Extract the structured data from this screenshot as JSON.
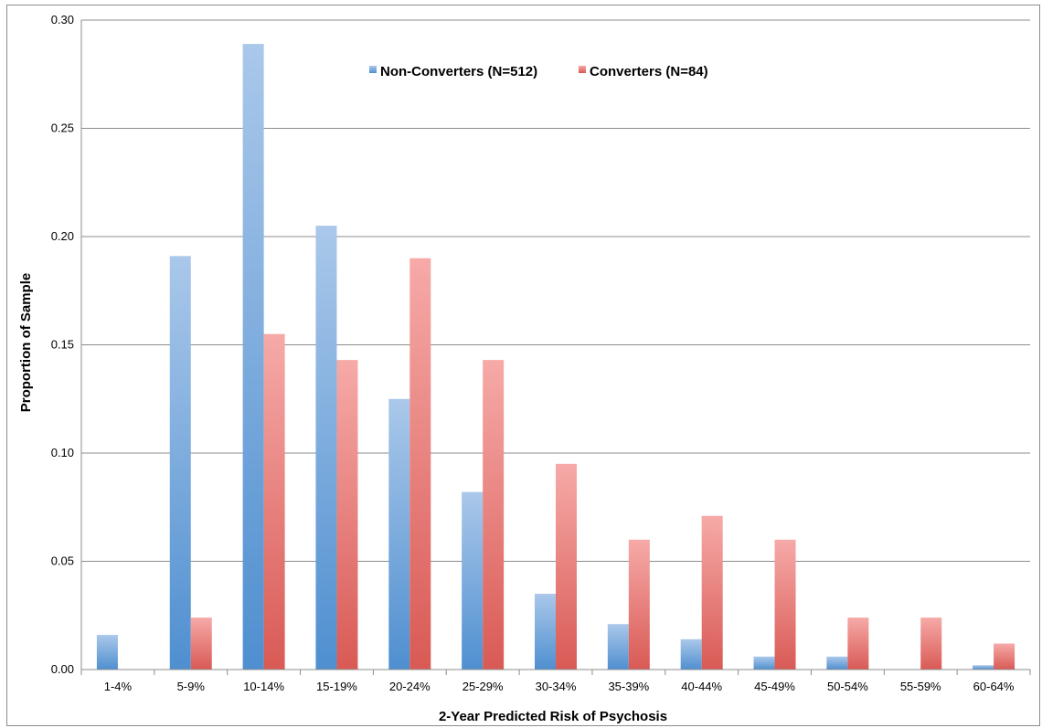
{
  "chart_data": {
    "type": "bar",
    "title": "",
    "xlabel": "2-Year Predicted Risk of Psychosis",
    "ylabel": "Proportion of Sample",
    "ylim": [
      0,
      0.3
    ],
    "yticks": [
      "0.00",
      "0.05",
      "0.10",
      "0.15",
      "0.20",
      "0.25",
      "0.30"
    ],
    "grid": true,
    "legend_position": "top-center",
    "categories": [
      "1-4%",
      "5-9%",
      "10-14%",
      "15-19%",
      "20-24%",
      "25-29%",
      "30-34%",
      "35-39%",
      "40-44%",
      "45-49%",
      "50-54%",
      "55-59%",
      "60-64%"
    ],
    "series": [
      {
        "name": "Non-Converters (N=512)",
        "color": "#5b9bd5",
        "values": [
          0.016,
          0.191,
          0.289,
          0.205,
          0.125,
          0.082,
          0.035,
          0.021,
          0.014,
          0.006,
          0.006,
          0.0,
          0.002
        ]
      },
      {
        "name": "Converters (N=84)",
        "color": "#e06666",
        "values": [
          0.0,
          0.024,
          0.155,
          0.143,
          0.19,
          0.143,
          0.095,
          0.06,
          0.071,
          0.06,
          0.024,
          0.024,
          0.012
        ]
      }
    ]
  }
}
